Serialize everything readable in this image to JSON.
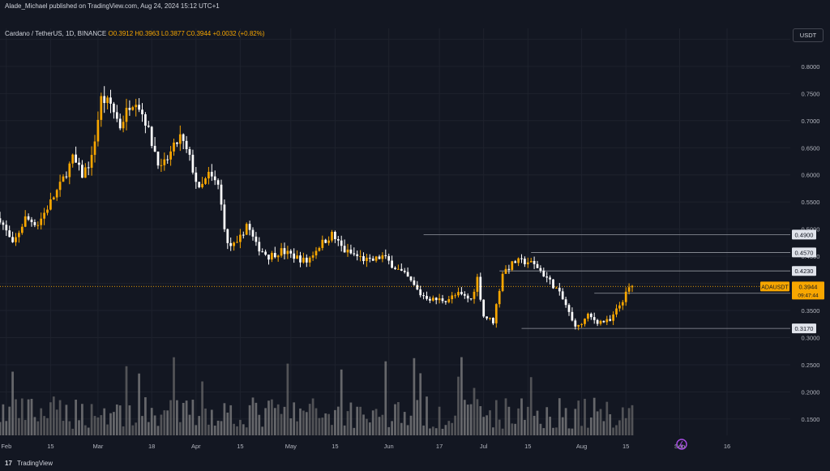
{
  "header": {
    "published_text": "Alade_Michael published on TradingView.com, Aug 24, 2024 15:12 UTC+1"
  },
  "symbol": {
    "title": "Cardano / TetherUS, 1D, BINANCE",
    "ohlc": "O0.3912  H0.3963  L0.3877  C0.3944  +0.0032 (+0.82%)"
  },
  "currency_label": "USDT",
  "footer": {
    "brand": "TradingView",
    "logo_mark": "17"
  },
  "colors": {
    "bg": "#131722",
    "up": "#f7a600",
    "down": "#ffffff",
    "grid": "#1e222d",
    "price_tag": "#f7a600"
  },
  "chart_data": {
    "type": "candlestick",
    "symbol": "ADAUSDT",
    "timeframe": "1D",
    "ylim": [
      0.12,
      0.87
    ],
    "y_ticks": [
      0.85,
      0.8,
      0.75,
      0.7,
      0.65,
      0.6,
      0.55,
      0.5,
      0.45,
      0.4,
      0.35,
      0.3,
      0.25,
      0.2,
      0.15
    ],
    "x_ticks": [
      {
        "label": "Feb",
        "day": 31
      },
      {
        "label": "15",
        "day": 45
      },
      {
        "label": "Mar",
        "day": 60
      },
      {
        "label": "18",
        "day": 77
      },
      {
        "label": "Apr",
        "day": 91
      },
      {
        "label": "15",
        "day": 105
      },
      {
        "label": "May",
        "day": 121
      },
      {
        "label": "15",
        "day": 135
      },
      {
        "label": "Jun",
        "day": 152
      },
      {
        "label": "17",
        "day": 168
      },
      {
        "label": "Jul",
        "day": 182
      },
      {
        "label": "15",
        "day": 196
      },
      {
        "label": "Aug",
        "day": 213
      },
      {
        "label": "15",
        "day": 227
      },
      {
        "label": "Sep",
        "day": 244
      },
      {
        "label": "16",
        "day": 259
      }
    ],
    "x_range_days": [
      29,
      279
    ],
    "levels": [
      {
        "value": 0.49,
        "label": "0.4900",
        "start_day": 163
      },
      {
        "value": 0.457,
        "label": "0.4570",
        "start_day": 197
      },
      {
        "value": 0.423,
        "label": "0.4230",
        "start_day": 187
      },
      {
        "value": 0.3818,
        "label": "0.3818",
        "start_day": 217
      },
      {
        "value": 0.317,
        "label": "0.3170",
        "start_day": 194
      }
    ],
    "current_price": {
      "value": 0.3944,
      "label": "ADAUSDT",
      "price": "0.3944",
      "countdown": "09:47:44"
    },
    "anchors": [
      [
        29,
        0.52
      ],
      [
        33,
        0.47
      ],
      [
        37,
        0.52
      ],
      [
        41,
        0.51
      ],
      [
        45,
        0.55
      ],
      [
        48,
        0.58
      ],
      [
        52,
        0.63
      ],
      [
        55,
        0.6
      ],
      [
        58,
        0.63
      ],
      [
        61,
        0.74
      ],
      [
        64,
        0.73
      ],
      [
        67,
        0.69
      ],
      [
        70,
        0.73
      ],
      [
        72,
        0.74
      ],
      [
        75,
        0.7
      ],
      [
        77,
        0.66
      ],
      [
        80,
        0.61
      ],
      [
        83,
        0.64
      ],
      [
        86,
        0.67
      ],
      [
        89,
        0.63
      ],
      [
        92,
        0.57
      ],
      [
        95,
        0.6
      ],
      [
        98,
        0.58
      ],
      [
        101,
        0.47
      ],
      [
        104,
        0.47
      ],
      [
        107,
        0.51
      ],
      [
        110,
        0.47
      ],
      [
        114,
        0.45
      ],
      [
        118,
        0.46
      ],
      [
        122,
        0.45
      ],
      [
        126,
        0.44
      ],
      [
        130,
        0.47
      ],
      [
        134,
        0.49
      ],
      [
        138,
        0.46
      ],
      [
        142,
        0.45
      ],
      [
        146,
        0.44
      ],
      [
        150,
        0.45
      ],
      [
        154,
        0.43
      ],
      [
        158,
        0.41
      ],
      [
        162,
        0.38
      ],
      [
        166,
        0.37
      ],
      [
        170,
        0.37
      ],
      [
        174,
        0.38
      ],
      [
        178,
        0.37
      ],
      [
        180,
        0.41
      ],
      [
        182,
        0.34
      ],
      [
        185,
        0.33
      ],
      [
        188,
        0.42
      ],
      [
        192,
        0.44
      ],
      [
        196,
        0.44
      ],
      [
        199,
        0.43
      ],
      [
        202,
        0.41
      ],
      [
        205,
        0.39
      ],
      [
        208,
        0.36
      ],
      [
        210,
        0.33
      ],
      [
        212,
        0.32
      ],
      [
        215,
        0.34
      ],
      [
        218,
        0.33
      ],
      [
        222,
        0.33
      ],
      [
        225,
        0.36
      ],
      [
        228,
        0.39
      ],
      [
        229,
        0.3944
      ]
    ],
    "volume": {
      "baseline_ratio": 0.16,
      "ma_visible": true
    }
  }
}
